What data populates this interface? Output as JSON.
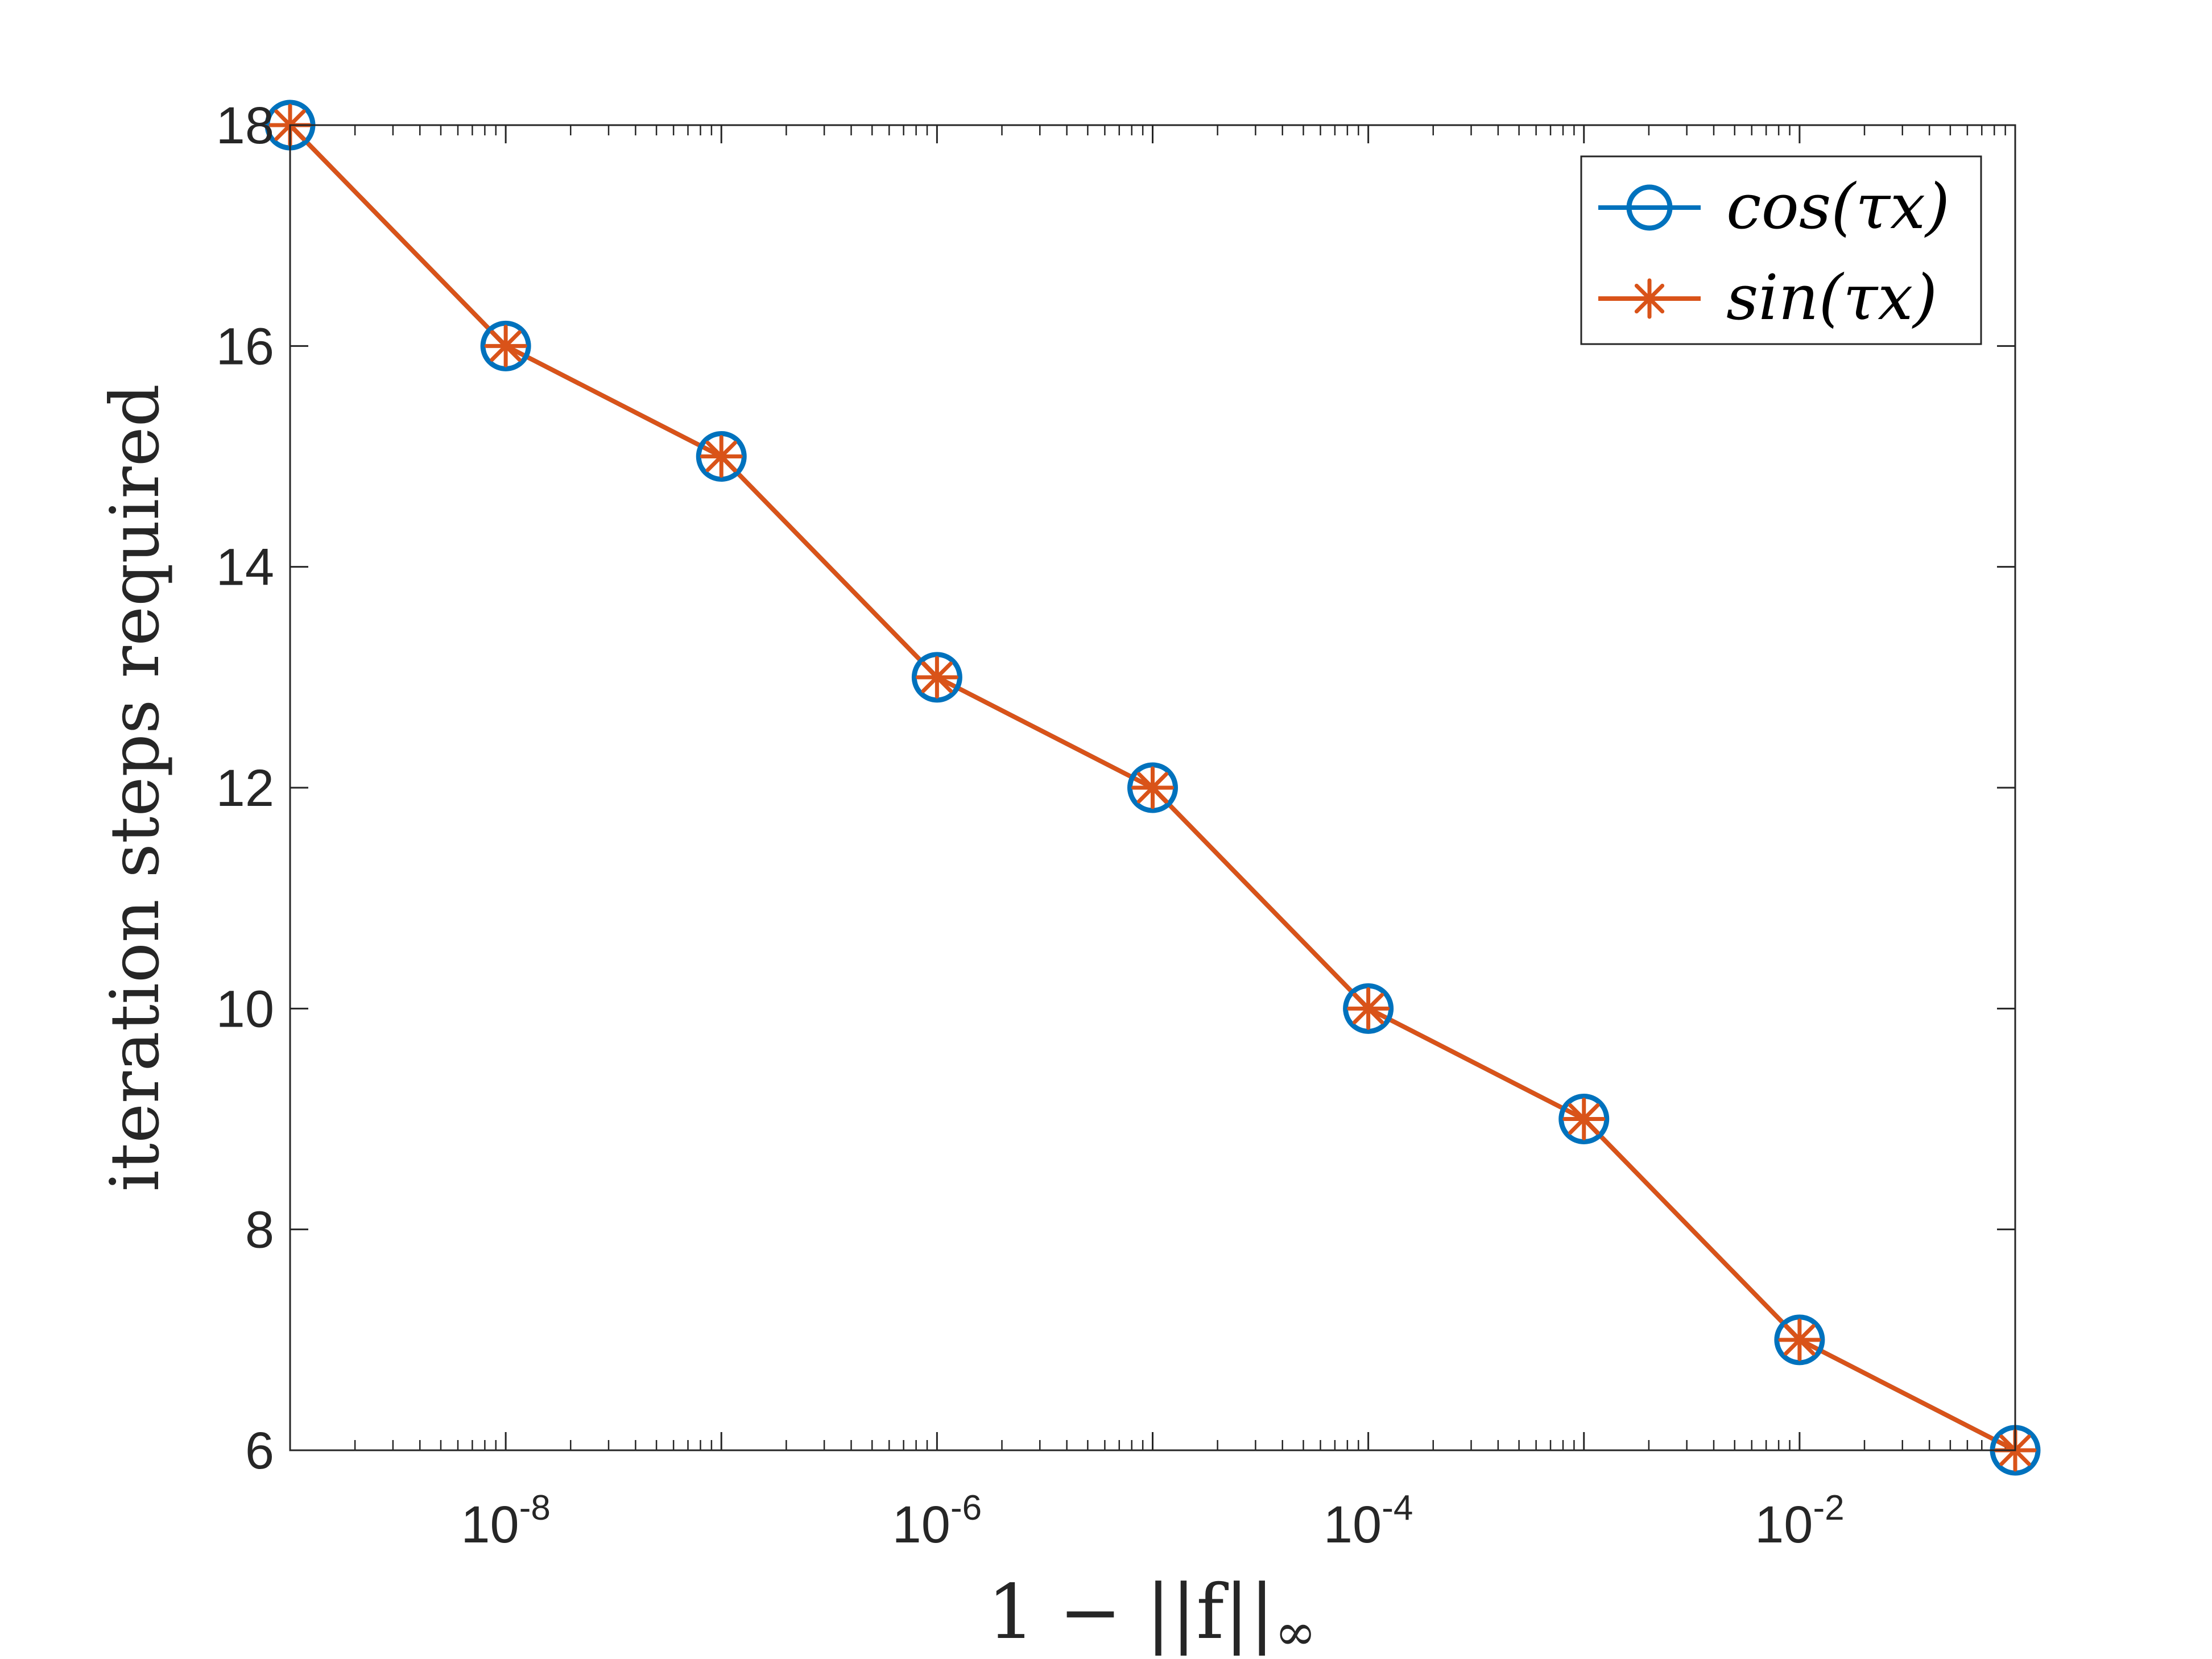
{
  "chart_data": {
    "type": "line",
    "xscale": "log",
    "xlabel": "1 − ||f||∞",
    "xlabel_parts": {
      "main": "1 − ||f||",
      "subscript": "∞"
    },
    "ylabel": "iteration steps required",
    "xlim": [
      1e-09,
      0.1
    ],
    "ylim": [
      6,
      18
    ],
    "x": [
      1e-09,
      1e-08,
      1e-07,
      1e-06,
      1e-05,
      0.0001,
      0.001,
      0.01,
      0.1
    ],
    "series": [
      {
        "name": "cos(τx)",
        "values": [
          18,
          16,
          15,
          13,
          12,
          10,
          9,
          7,
          6
        ],
        "color": "#0072BD",
        "marker": "circle"
      },
      {
        "name": "sin(τx)",
        "values": [
          18,
          16,
          15,
          13,
          12,
          10,
          9,
          7,
          6
        ],
        "color": "#D95319",
        "marker": "asterisk"
      }
    ],
    "xticks": [
      {
        "value": 1e-08,
        "base": "10",
        "exp": "-8"
      },
      {
        "value": 1e-06,
        "base": "10",
        "exp": "-6"
      },
      {
        "value": 0.0001,
        "base": "10",
        "exp": "-4"
      },
      {
        "value": 0.01,
        "base": "10",
        "exp": "-2"
      }
    ],
    "yticks": [
      6,
      8,
      10,
      12,
      14,
      16,
      18
    ],
    "grid": false,
    "legend_position": "top-right",
    "box": true
  }
}
